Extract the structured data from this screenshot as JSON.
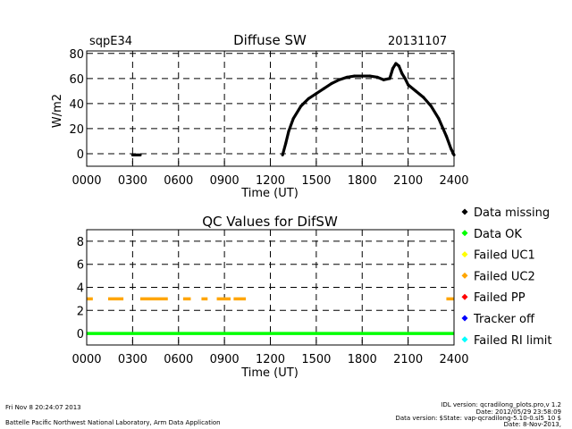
{
  "header": {
    "site": "sqpE34",
    "date": "20131107"
  },
  "chart_data": [
    {
      "type": "scatter",
      "title": "Diffuse SW",
      "xlabel": "Time (UT)",
      "ylabel": "W/m2",
      "xlim": [
        0,
        2400
      ],
      "ylim": [
        -10,
        82
      ],
      "x_ticks": [
        "0000",
        "0300",
        "0600",
        "0900",
        "1200",
        "1500",
        "1800",
        "2100",
        "2400"
      ],
      "y_ticks": [
        "0",
        "20",
        "40",
        "60",
        "80"
      ],
      "grid": true,
      "series": [
        {
          "color": "#000000",
          "points": [
            [
              0,
              -1
            ],
            [
              100,
              -1
            ],
            [
              200,
              -1
            ],
            [
              300,
              -1
            ],
            [
              350,
              -1
            ],
            [
              450,
              -1
            ],
            [
              600,
              -1
            ],
            [
              800,
              -1
            ],
            [
              1000,
              -1
            ],
            [
              1200,
              -1
            ],
            [
              1280,
              -1
            ],
            [
              1300,
              8
            ],
            [
              1320,
              18
            ],
            [
              1350,
              28
            ],
            [
              1400,
              38
            ],
            [
              1450,
              44
            ],
            [
              1500,
              48
            ],
            [
              1550,
              52
            ],
            [
              1600,
              56
            ],
            [
              1650,
              59
            ],
            [
              1700,
              61
            ],
            [
              1750,
              62
            ],
            [
              1800,
              62
            ],
            [
              1850,
              62
            ],
            [
              1900,
              61
            ],
            [
              1940,
              59
            ],
            [
              1980,
              60
            ],
            [
              2000,
              68
            ],
            [
              2020,
              72
            ],
            [
              2040,
              70
            ],
            [
              2060,
              64
            ],
            [
              2080,
              60
            ],
            [
              2100,
              55
            ],
            [
              2150,
              50
            ],
            [
              2200,
              45
            ],
            [
              2250,
              38
            ],
            [
              2300,
              28
            ],
            [
              2350,
              14
            ],
            [
              2380,
              4
            ],
            [
              2400,
              -1
            ]
          ]
        }
      ]
    },
    {
      "type": "scatter",
      "title": "QC Values for DifSW",
      "xlabel": "Time (UT)",
      "ylabel": "",
      "xlim": [
        0,
        2400
      ],
      "ylim": [
        -1,
        9
      ],
      "x_ticks": [
        "0000",
        "0300",
        "0600",
        "0900",
        "1200",
        "1500",
        "1800",
        "2100",
        "2400"
      ],
      "y_ticks": [
        "0",
        "2",
        "4",
        "6",
        "8"
      ],
      "grid": true,
      "segments": [
        {
          "color": "#00ff00",
          "y": 0,
          "x0": 0,
          "x1": 2400
        },
        {
          "color": "#ffa500",
          "y": 3,
          "x0": 0,
          "x1": 40
        },
        {
          "color": "#ffa500",
          "y": 3,
          "x0": 140,
          "x1": 240
        },
        {
          "color": "#ffa500",
          "y": 3,
          "x0": 350,
          "x1": 530
        },
        {
          "color": "#ffa500",
          "y": 3,
          "x0": 630,
          "x1": 680
        },
        {
          "color": "#ffa500",
          "y": 3,
          "x0": 750,
          "x1": 790
        },
        {
          "color": "#ffa500",
          "y": 3,
          "x0": 850,
          "x1": 940
        },
        {
          "color": "#ffa500",
          "y": 3,
          "x0": 960,
          "x1": 1040
        },
        {
          "color": "#ffa500",
          "y": 3,
          "x0": 2350,
          "x1": 2400
        }
      ],
      "legend": {
        "placement": "right",
        "entries": [
          {
            "label": "Data missing",
            "color": "#000000"
          },
          {
            "label": "Data OK",
            "color": "#00ff00"
          },
          {
            "label": "Failed UC1",
            "color": "#ffff00"
          },
          {
            "label": "Failed UC2",
            "color": "#ffa500"
          },
          {
            "label": "Failed PP",
            "color": "#ff0000"
          },
          {
            "label": "Tracker off",
            "color": "#0000ff"
          },
          {
            "label": "Failed RI limit",
            "color": "#00ffff"
          }
        ]
      }
    }
  ],
  "footer": {
    "timestamp": "Fri Nov  8 20:24:07 2013",
    "institution": "Battelle Pacific Northwest National Laboratory, Arm Data Application",
    "idl_version": "IDL version: qcradilong_plots.pro,v 1.2",
    "idl_date": "Date: 2012/05/29 23:58:09",
    "data_version": "Data version: $State: vap-qcradilong-5.10-0.sl5_10 $",
    "data_date": "Date: 8-Nov-2013,"
  }
}
